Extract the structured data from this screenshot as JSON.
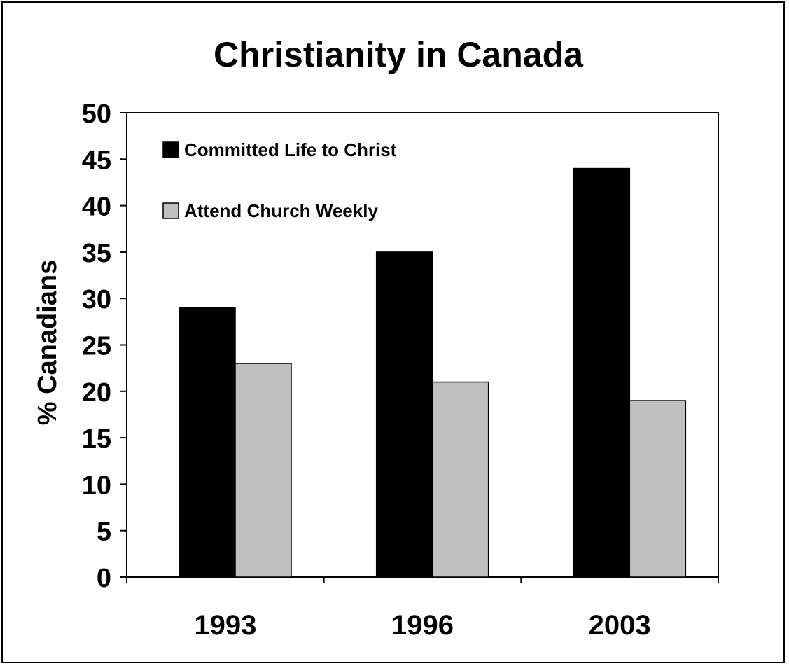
{
  "chart_data": {
    "type": "bar",
    "title": "Christianity in Canada",
    "xlabel": "",
    "ylabel": "% Canadians",
    "ylim": [
      0,
      50
    ],
    "yticks": [
      0,
      5,
      10,
      15,
      20,
      25,
      30,
      35,
      40,
      45,
      50
    ],
    "grid": false,
    "legend_position": "top-left",
    "categories": [
      "1993",
      "1996",
      "2003"
    ],
    "series": [
      {
        "name": "Committed Life to Christ",
        "values": [
          29,
          35,
          44
        ],
        "color": "#000000"
      },
      {
        "name": "Attend Church Weekly",
        "values": [
          23,
          21,
          19
        ],
        "color": "#c0c0c0"
      }
    ]
  }
}
